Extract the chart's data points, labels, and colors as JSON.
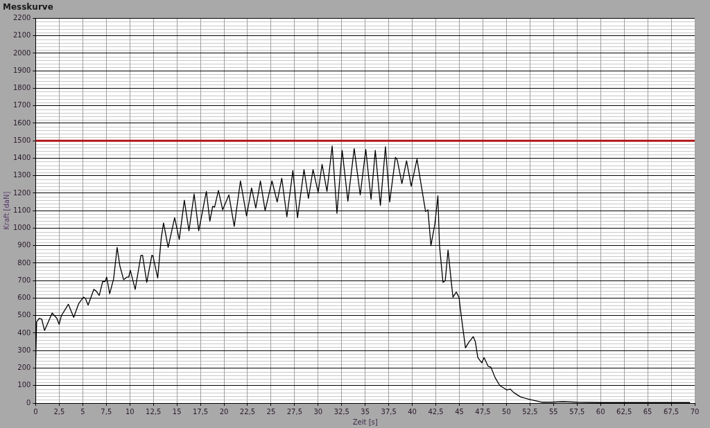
{
  "chart_data": {
    "type": "line",
    "title": "Messkurve",
    "xlabel": "Zeit [s]",
    "ylabel": "Kraft [daN]",
    "xlim": [
      0,
      70
    ],
    "xticks": [
      0,
      {
        "value": 2.5,
        "label": "2,5"
      },
      5,
      {
        "value": 7.5,
        "label": "7,5"
      },
      10,
      {
        "value": 12.5,
        "label": "12,5"
      },
      15,
      {
        "value": 17.5,
        "label": "17,5"
      },
      20,
      {
        "value": 22.5,
        "label": "22,5"
      },
      25,
      {
        "value": 27.5,
        "label": "27,5"
      },
      30,
      {
        "value": 32.5,
        "label": "32,5"
      },
      35,
      {
        "value": 37.5,
        "label": "37,5"
      },
      40,
      {
        "value": 42.5,
        "label": "42,5"
      },
      45,
      {
        "value": 47.5,
        "label": "47,5"
      },
      50,
      {
        "value": 52.5,
        "label": "52,5"
      },
      55,
      {
        "value": 57.5,
        "label": "57,5"
      },
      60,
      {
        "value": 62.5,
        "label": "62,5"
      },
      65,
      {
        "value": 67.5,
        "label": "67,5"
      },
      70
    ],
    "ylim": [
      0,
      2200
    ],
    "yticks": [
      0,
      100,
      200,
      300,
      400,
      500,
      600,
      700,
      800,
      900,
      1000,
      1100,
      1200,
      1300,
      1400,
      1500,
      1600,
      1700,
      1800,
      1900,
      2000,
      2100,
      2200
    ],
    "grid": true,
    "legend": false,
    "marker": "none",
    "line_style": "solid",
    "ref_lines": [
      {
        "axis": "y",
        "value": 1500,
        "color": "#b01818"
      }
    ],
    "series": [
      {
        "color": "#000000",
        "x": [
          0,
          0,
          0.1,
          0.4,
          0.64,
          0.94,
          1.75,
          2.24,
          2.49,
          2.73,
          3.47,
          4.04,
          4.58,
          5.07,
          5.27,
          5.57,
          6.18,
          6.43,
          6.75,
          7.12,
          7.37,
          7.54,
          7.86,
          8.28,
          8.65,
          8.94,
          9.34,
          9.68,
          9.88,
          10.05,
          10.57,
          11.18,
          11.35,
          11.8,
          12.34,
          12.46,
          12.96,
          13.33,
          13.58,
          14.07,
          14.76,
          15.25,
          15.79,
          16.28,
          16.83,
          17.32,
          18.13,
          18.5,
          18.8,
          19.0,
          19.41,
          19.86,
          20.52,
          21.09,
          21.75,
          22.4,
          22.93,
          23.38,
          23.87,
          24.37,
          25.1,
          25.65,
          26.14,
          26.68,
          27.32,
          27.81,
          28.5,
          28.97,
          29.46,
          30.0,
          30.42,
          30.94,
          31.49,
          32.0,
          32.55,
          33.16,
          33.83,
          34.47,
          35.06,
          35.62,
          36.07,
          36.61,
          37.15,
          37.6,
          38.21,
          38.4,
          38.9,
          39.39,
          39.89,
          40.5,
          40.92,
          41.41,
          41.66,
          41.98,
          42.4,
          42.72,
          42.89,
          43.26,
          43.5,
          43.8,
          44.07,
          44.32,
          44.67,
          44.96,
          45.23,
          45.65,
          45.97,
          46.47,
          46.7,
          46.96,
          47.38,
          47.62,
          48.06,
          48.35,
          48.8,
          49.3,
          50.04,
          50.4,
          50.78,
          51.5,
          52.5,
          53.73,
          54.7,
          56.0,
          57.5,
          60.0,
          65.0,
          69.5
        ],
        "values": [
          0,
          230,
          465,
          485,
          480,
          415,
          515,
          485,
          450,
          500,
          565,
          490,
          570,
          605,
          600,
          560,
          650,
          640,
          615,
          695,
          695,
          720,
          625,
          710,
          890,
          785,
          705,
          720,
          720,
          760,
          650,
          845,
          845,
          690,
          845,
          840,
          715,
          940,
          1030,
          890,
          1060,
          935,
          1160,
          985,
          1195,
          985,
          1210,
          1040,
          1125,
          1120,
          1215,
          1105,
          1190,
          1010,
          1270,
          1070,
          1230,
          1115,
          1270,
          1100,
          1270,
          1150,
          1285,
          1065,
          1330,
          1060,
          1335,
          1170,
          1335,
          1205,
          1365,
          1210,
          1470,
          1085,
          1445,
          1155,
          1455,
          1190,
          1450,
          1165,
          1445,
          1130,
          1465,
          1150,
          1405,
          1390,
          1255,
          1385,
          1240,
          1395,
          1255,
          1095,
          1105,
          900,
          1025,
          1185,
          900,
          690,
          700,
          875,
          730,
          605,
          635,
          605,
          485,
          315,
          345,
          380,
          350,
          260,
          230,
          260,
          210,
          205,
          145,
          100,
          75,
          80,
          60,
          35,
          20,
          5,
          5,
          8,
          5,
          3,
          3,
          3
        ]
      }
    ]
  }
}
